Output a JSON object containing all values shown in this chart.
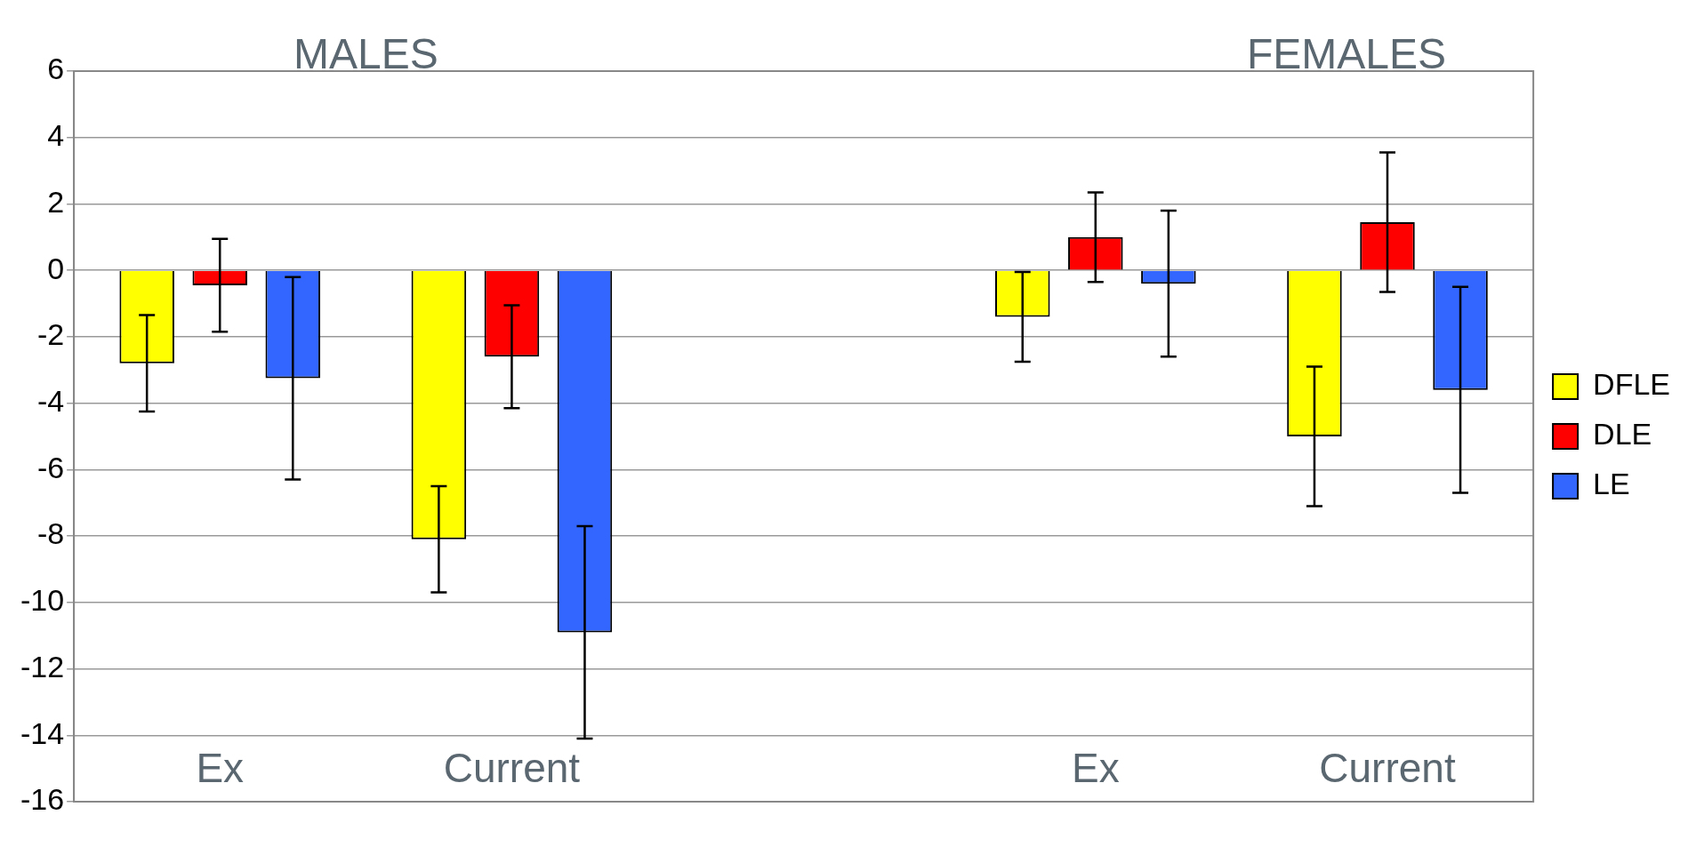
{
  "chart_data": {
    "type": "bar",
    "categories": [
      "Ex",
      "Current",
      null,
      "Ex",
      "Current"
    ],
    "series": [
      {
        "name": "DFLE",
        "color": "#ffff00",
        "values": [
          -2.8,
          -8.1,
          null,
          -1.4,
          -5.0
        ],
        "errors": [
          1.45,
          1.6,
          null,
          1.35,
          2.1
        ]
      },
      {
        "name": "DLE",
        "color": "#ff0000",
        "values": [
          -0.45,
          -2.6,
          null,
          1.0,
          1.45
        ],
        "errors": [
          1.4,
          1.55,
          null,
          1.35,
          2.1
        ]
      },
      {
        "name": "LE",
        "color": "#3366ff",
        "values": [
          -3.25,
          -10.9,
          null,
          -0.4,
          -3.6
        ],
        "errors": [
          3.05,
          3.2,
          null,
          2.2,
          3.1
        ]
      }
    ],
    "ylim": [
      -16,
      6
    ],
    "yticks": [
      -16,
      -14,
      -12,
      -10,
      -8,
      -6,
      -4,
      -2,
      0,
      2,
      4,
      6
    ],
    "grid": "y",
    "legend": "right",
    "annotations": [
      "MALES",
      "FEMALES"
    ]
  }
}
